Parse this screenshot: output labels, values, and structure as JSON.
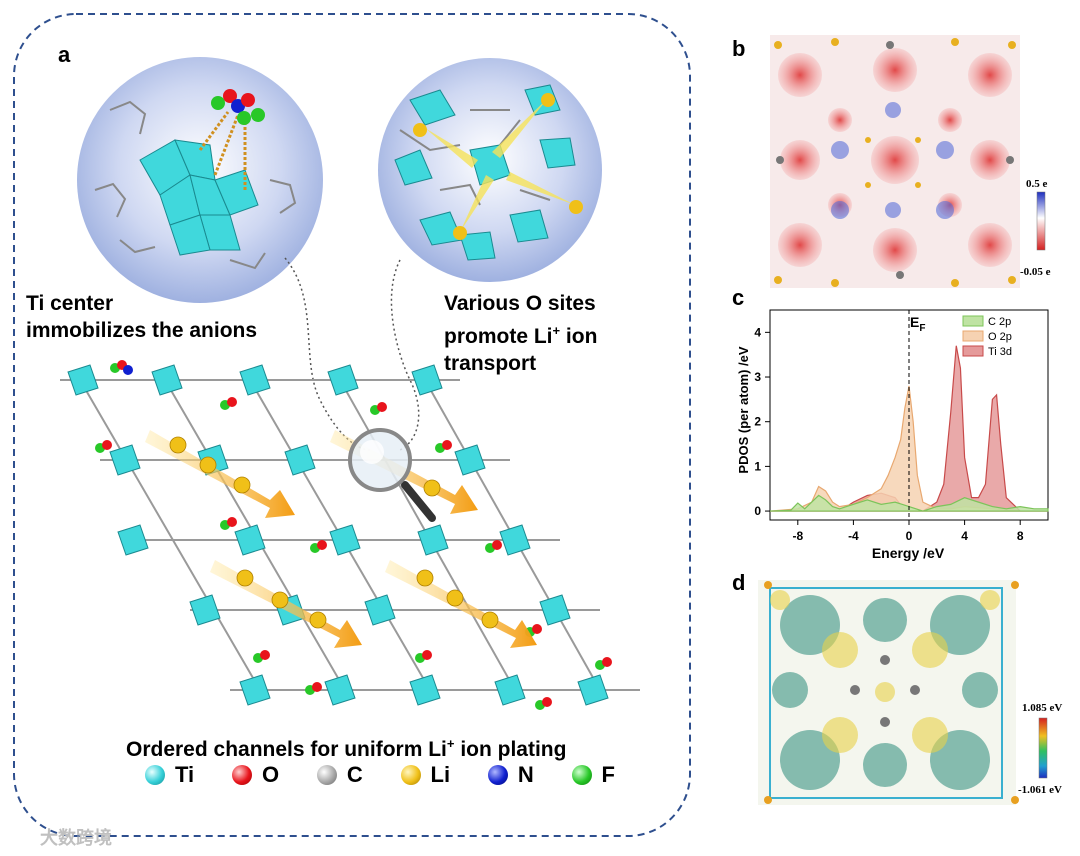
{
  "panel_a": {
    "letter": "a",
    "callout_left": [
      "Ti  center",
      "immobilizes the anions"
    ],
    "callout_right": [
      "Various O sites",
      "promote Li",
      "+",
      " ion",
      "transport"
    ],
    "caption_main": "Ordered channels for uniform Li",
    "caption_sup": "+",
    "caption_tail": " ion plating",
    "legend": [
      {
        "label": "Ti",
        "color": "#35d0d8"
      },
      {
        "label": "O",
        "color": "#e8141c"
      },
      {
        "label": "C",
        "color": "#a8a8a8"
      },
      {
        "label": "Li",
        "color": "#f0c018"
      },
      {
        "label": "N",
        "color": "#1020d0"
      },
      {
        "label": "F",
        "color": "#28c828"
      }
    ]
  },
  "panel_b": {
    "letter": "b",
    "colorbar_max": "0.5 e",
    "colorbar_min": "-0.05 e"
  },
  "panel_c": {
    "letter": "c",
    "ef_label": "E",
    "ef_sub": "F"
  },
  "panel_d": {
    "letter": "d",
    "colorbar_max": "1.085 eV",
    "colorbar_min": "-1.061 eV"
  },
  "watermark": "大数跨境",
  "chart_data": {
    "type": "area",
    "title": "",
    "xlabel": "Energy /eV",
    "ylabel": "PDOS (per atom) /eV",
    "xlim": [
      -10,
      10
    ],
    "ylim": [
      -0.2,
      4.5
    ],
    "xticks": [
      -8,
      -4,
      0,
      4,
      8
    ],
    "yticks": [
      0,
      1,
      2,
      3,
      4
    ],
    "annotation": "E_F at 0 eV (dashed line)",
    "legend_position": "top-right",
    "series": [
      {
        "name": "C 2p",
        "color": "#7cc45a",
        "fill": "#bfe3a3",
        "x": [
          -10,
          -8.5,
          -8,
          -7.5,
          -6.5,
          -6,
          -5.5,
          -5,
          -4.5,
          -3,
          -2,
          -1,
          -0.5,
          0,
          0.5,
          1,
          2,
          3,
          4,
          5,
          6,
          7,
          8,
          9,
          10
        ],
        "y": [
          0,
          0.02,
          0.18,
          0.05,
          0.35,
          0.25,
          0.1,
          0.05,
          0.1,
          0.25,
          0.15,
          0.2,
          0.15,
          0.1,
          0.05,
          0,
          0.1,
          0.15,
          0.3,
          0.2,
          0.1,
          0.05,
          0.1,
          0.05,
          0.05
        ]
      },
      {
        "name": "O 2p",
        "color": "#e8a870",
        "fill": "#f6d2b2",
        "x": [
          -10,
          -8,
          -7,
          -6.5,
          -6,
          -5.5,
          -5,
          -4,
          -3,
          -2,
          -1.5,
          -1,
          -0.6,
          -0.3,
          0,
          0.3,
          0.6,
          1,
          2,
          3,
          4,
          6,
          8,
          10
        ],
        "y": [
          0,
          0.05,
          0.2,
          0.55,
          0.45,
          0.2,
          0.1,
          0.15,
          0.3,
          0.5,
          0.8,
          1.2,
          1.6,
          2.3,
          2.8,
          2.0,
          0.8,
          0.2,
          0.05,
          0.05,
          0.1,
          0.05,
          0,
          0
        ]
      },
      {
        "name": "Ti 3d",
        "color": "#c84a4a",
        "fill": "#e59a9a",
        "x": [
          -10,
          -5,
          -4,
          -3,
          -2,
          -1,
          -0.5,
          0,
          1,
          2,
          2.5,
          3,
          3.4,
          3.7,
          4,
          4.5,
          5,
          5.5,
          6,
          6.3,
          6.6,
          7,
          8,
          10
        ],
        "y": [
          0,
          0,
          0.2,
          0.35,
          0.4,
          0.3,
          0.1,
          0,
          0,
          0.2,
          0.6,
          2.2,
          3.7,
          3.2,
          1.2,
          0.3,
          0.3,
          0.6,
          2.5,
          2.6,
          1.5,
          0.3,
          0,
          0
        ]
      }
    ]
  }
}
